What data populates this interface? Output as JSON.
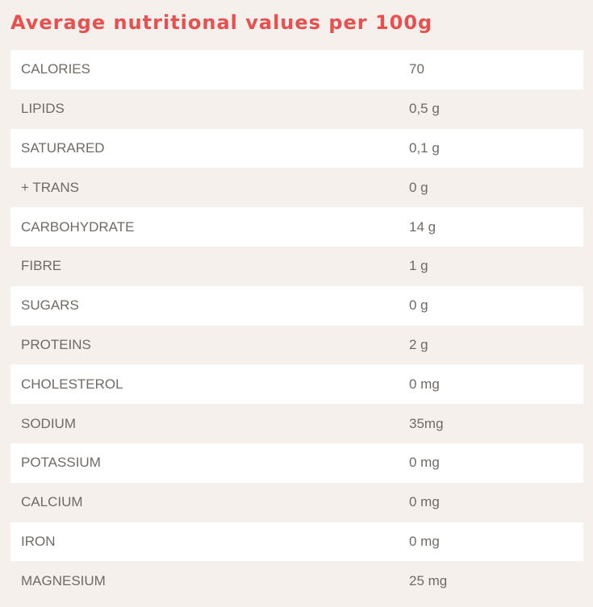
{
  "title": "Average nutritional values per 100g",
  "rows": [
    {
      "label": "CALORIES",
      "value": "70"
    },
    {
      "label": "LIPIDS",
      "value": "0,5 g"
    },
    {
      "label": "SATURARED",
      "value": "0,1 g"
    },
    {
      "label": "+ TRANS",
      "value": "0 g"
    },
    {
      "label": "CARBOHYDRATE",
      "value": "14 g"
    },
    {
      "label": "FIBRE",
      "value": "1 g"
    },
    {
      "label": "SUGARS",
      "value": "0 g"
    },
    {
      "label": "PROTEINS",
      "value": "2 g"
    },
    {
      "label": "CHOLESTEROL",
      "value": "0 mg"
    },
    {
      "label": "SODIUM",
      "value": "35mg"
    },
    {
      "label": "POTASSIUM",
      "value": "0 mg"
    },
    {
      "label": "CALCIUM",
      "value": "0 mg"
    },
    {
      "label": "IRON",
      "value": "0 mg"
    },
    {
      "label": "MAGNESIUM",
      "value": "25 mg"
    }
  ],
  "colors": {
    "title": "#e8504f",
    "background": "#f5f0ec",
    "row_alt": "#ffffff",
    "text": "#6f6a66"
  }
}
